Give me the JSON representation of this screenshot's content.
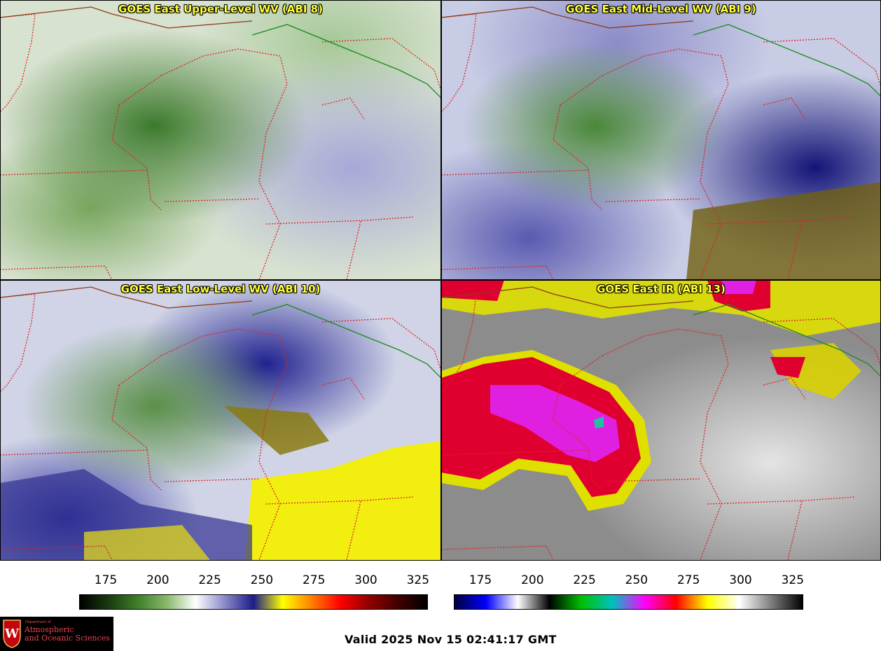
{
  "panels": [
    {
      "title": "GOES East Upper-Level WV (ABI 8)",
      "scheme": "wv-upper"
    },
    {
      "title": "GOES East Mid-Level WV (ABI 9)",
      "scheme": "wv-mid"
    },
    {
      "title": "GOES East Low-Level WV (ABI 10)",
      "scheme": "wv-low"
    },
    {
      "title": "GOES East IR (ABI 13)",
      "scheme": "ir"
    }
  ],
  "colorbars": {
    "wv": {
      "ticks": [
        "175",
        "200",
        "225",
        "250",
        "275",
        "300",
        "325"
      ],
      "stops": [
        "#000000",
        "#1a3a10",
        "#3f7f2a",
        "#88b86a",
        "#ffffff",
        "#8a8ac8",
        "#1c1c8a",
        "#ffff00",
        "#ff8000",
        "#ff0000",
        "#900000",
        "#400000",
        "#000000"
      ]
    },
    "ir": {
      "ticks": [
        "175",
        "200",
        "225",
        "250",
        "275",
        "300",
        "325"
      ],
      "stops": [
        "#000040",
        "#0000ff",
        "#ffffff",
        "#000000",
        "#00c000",
        "#00c0c0",
        "#ff00ff",
        "#ff0000",
        "#ffff00",
        "#ffffff",
        "#808080",
        "#000000"
      ]
    }
  },
  "valid_time": "Valid 2025 Nov 15 02:41:17 GMT",
  "logo": {
    "department_line": "Department of",
    "name_line1": "Atmospheric",
    "name_line2": "and Oceanic Sciences",
    "shield_letter": "W"
  },
  "colors": {
    "title_yellow": "#ffff33",
    "state_border": "#dd2222",
    "country_border": "#1b8a1b",
    "lake_border": "#8b3a1a"
  }
}
